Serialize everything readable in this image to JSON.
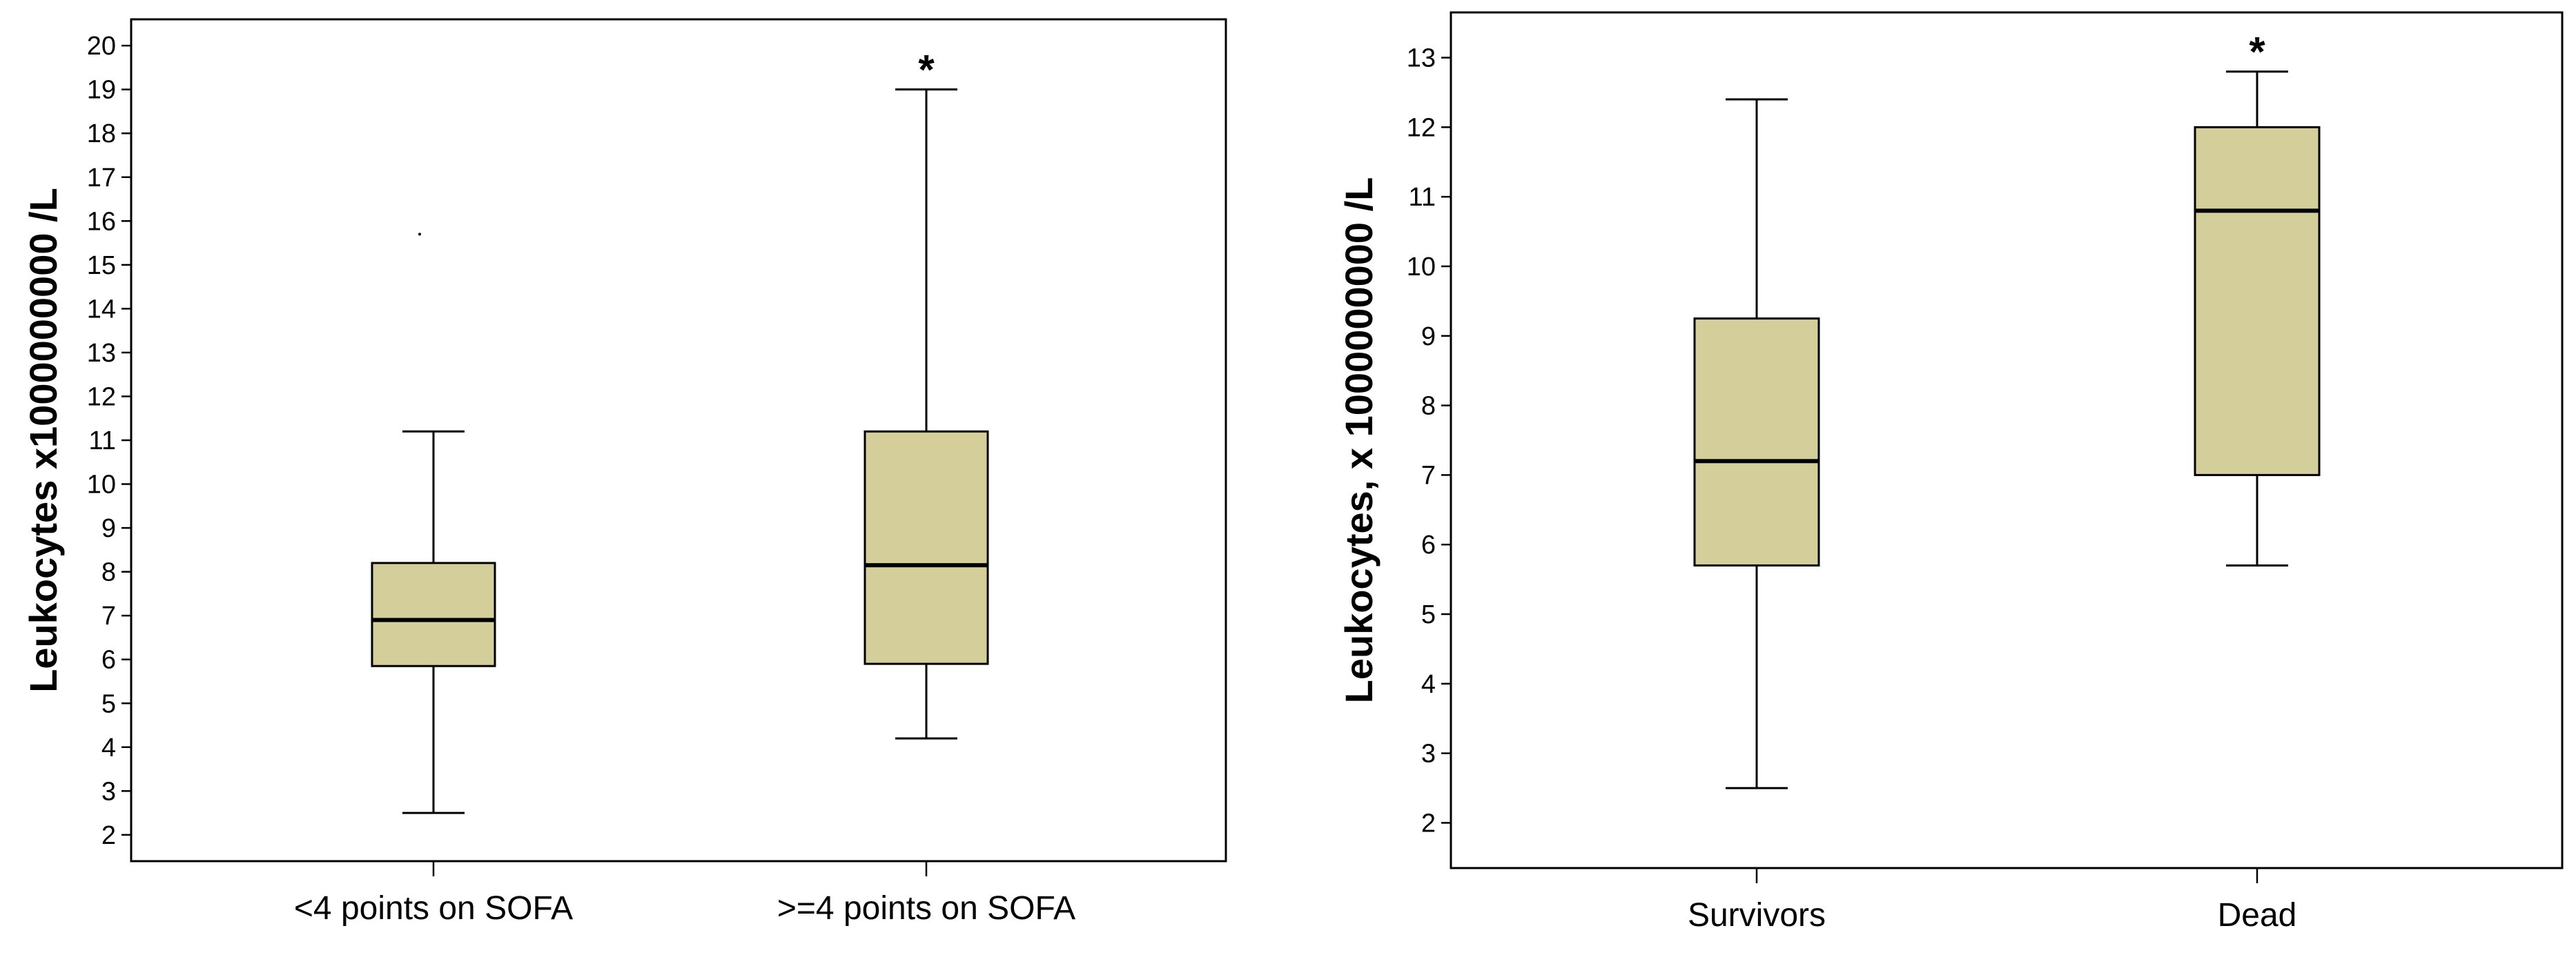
{
  "chart_data": [
    {
      "type": "box",
      "title": "",
      "ylabel": "Leukocytes x1000000000 /L",
      "xlabel": "",
      "ylim": [
        1.4,
        20.6
      ],
      "yticks": [
        2,
        3,
        4,
        5,
        6,
        7,
        8,
        9,
        10,
        11,
        12,
        13,
        14,
        15,
        16,
        17,
        18,
        19,
        20
      ],
      "grid": false,
      "box_color": "#d4cf9a",
      "categories": [
        "<4 points on SOFA",
        ">=4 points on SOFA"
      ],
      "boxes": [
        {
          "name": "<4 points on SOFA",
          "whisker_low": 2.5,
          "q1": 5.85,
          "median": 6.9,
          "q3": 8.2,
          "whisker_high": 11.2,
          "outliers": [
            15.7
          ],
          "annotation": ""
        },
        {
          "name": ">=4 points on SOFA",
          "whisker_low": 4.2,
          "q1": 5.9,
          "median": 8.15,
          "q3": 11.2,
          "whisker_high": 19.0,
          "outliers": [],
          "annotation": "*"
        }
      ]
    },
    {
      "type": "box",
      "title": "",
      "ylabel": "Leukocytes, x 1000000000 /L",
      "xlabel": "",
      "ylim": [
        1.35,
        13.65
      ],
      "yticks": [
        2,
        3,
        4,
        5,
        6,
        7,
        8,
        9,
        10,
        11,
        12,
        13
      ],
      "grid": false,
      "box_color": "#d4cf9a",
      "categories": [
        "Survivors",
        "Dead"
      ],
      "boxes": [
        {
          "name": "Survivors",
          "whisker_low": 2.5,
          "q1": 5.7,
          "median": 7.2,
          "q3": 9.25,
          "whisker_high": 12.4,
          "outliers": [],
          "annotation": ""
        },
        {
          "name": "Dead",
          "whisker_low": 5.7,
          "q1": 7.0,
          "median": 10.8,
          "q3": 12.0,
          "whisker_high": 12.8,
          "outliers": [],
          "annotation": "*"
        }
      ]
    }
  ]
}
